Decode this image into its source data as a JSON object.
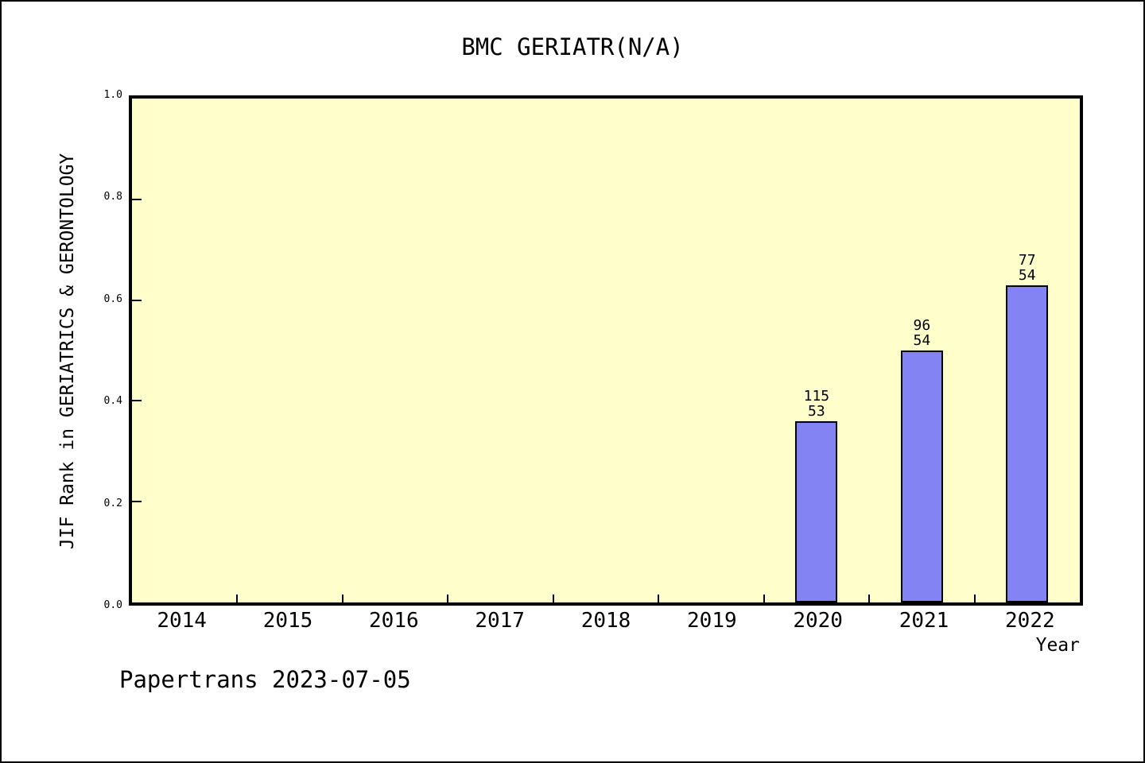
{
  "page": {
    "background_color": "#ffffff",
    "frame_border_color": "#000000"
  },
  "footer": {
    "watermark": "Papertrans 2023-07-05"
  },
  "chart_data": {
    "type": "bar",
    "title": "BMC GERIATR(N/A)",
    "xlabel": "Year",
    "ylabel": "JIF Rank in GERIATRICS & GERONTOLOGY",
    "ylim": [
      0.0,
      1.0
    ],
    "ytick_labels": [
      "0.0",
      "0.2",
      "0.4",
      "0.6",
      "0.8",
      "1.0"
    ],
    "ytick_values": [
      0.0,
      0.2,
      0.4,
      0.6,
      0.8,
      1.0
    ],
    "grid": false,
    "legend": null,
    "plot_bg_color": "#ffffcc",
    "bar_color": "#8383f3",
    "bar_border_color": "#000000",
    "categories": [
      "2014",
      "2015",
      "2016",
      "2017",
      "2018",
      "2019",
      "2020",
      "2021",
      "2022"
    ],
    "bars": [
      {
        "category": "2020",
        "value": 0.36,
        "label_top": "115",
        "label_bottom": "53"
      },
      {
        "category": "2021",
        "value": 0.5,
        "label_top": "96",
        "label_bottom": "54"
      },
      {
        "category": "2022",
        "value": 0.63,
        "label_top": "77",
        "label_bottom": "54"
      }
    ]
  }
}
